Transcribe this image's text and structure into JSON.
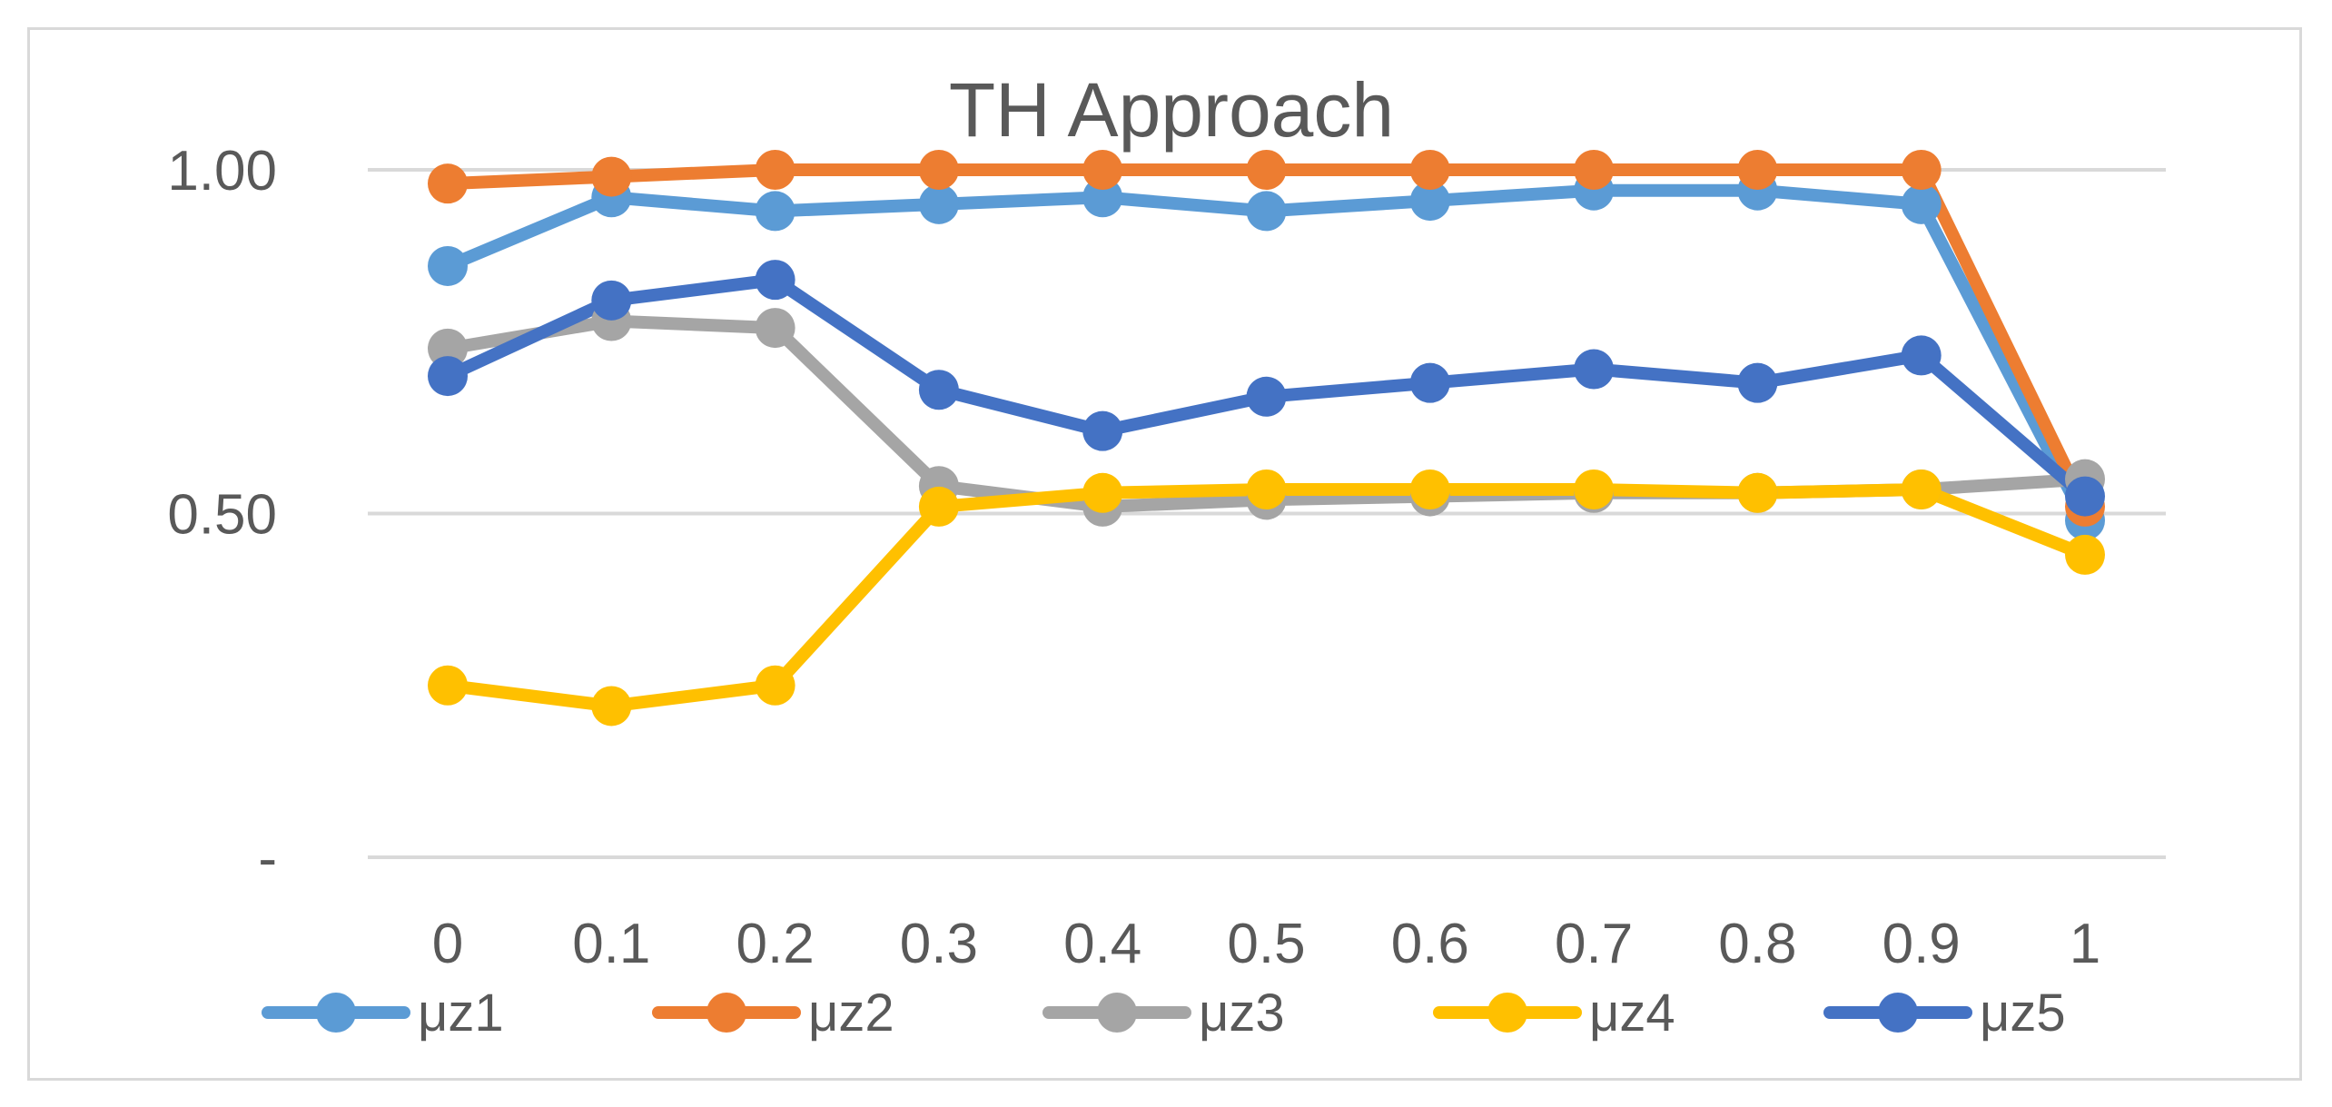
{
  "chart_data": {
    "type": "line",
    "title": "TH Approach",
    "xlabel": "",
    "ylabel": "",
    "x": [
      0,
      0.1,
      0.2,
      0.3,
      0.4,
      0.5,
      0.6,
      0.7,
      0.8,
      0.9,
      1
    ],
    "x_tick_labels": [
      "0",
      "0.1",
      "0.2",
      "0.3",
      "0.4",
      "0.5",
      "0.6",
      "0.7",
      "0.8",
      "0.9",
      "1"
    ],
    "ylim": [
      0,
      1
    ],
    "y_ticks": [
      0,
      0.5,
      1
    ],
    "y_tick_labels": [
      "-",
      "0.50",
      "1.00"
    ],
    "grid": true,
    "legend_position": "bottom",
    "series": [
      {
        "name": "μz1",
        "color": "#5b9bd5",
        "values": [
          0.86,
          0.96,
          0.94,
          0.95,
          0.96,
          0.94,
          0.955,
          0.97,
          0.97,
          0.95,
          0.49
        ]
      },
      {
        "name": "μz2",
        "color": "#ed7d31",
        "values": [
          0.98,
          0.99,
          1.0,
          1.0,
          1.0,
          1.0,
          1.0,
          1.0,
          1.0,
          1.0,
          0.51
        ]
      },
      {
        "name": "μz3",
        "color": "#a5a5a5",
        "values": [
          0.74,
          0.78,
          0.77,
          0.54,
          0.51,
          0.52,
          0.525,
          0.53,
          0.53,
          0.535,
          0.55
        ]
      },
      {
        "name": "μz4",
        "color": "#ffc000",
        "values": [
          0.25,
          0.22,
          0.25,
          0.51,
          0.53,
          0.535,
          0.535,
          0.535,
          0.53,
          0.535,
          0.44
        ]
      },
      {
        "name": "μz5",
        "color": "#4472c4",
        "values": [
          0.7,
          0.81,
          0.84,
          0.68,
          0.62,
          0.67,
          0.69,
          0.71,
          0.69,
          0.73,
          0.525
        ]
      }
    ]
  }
}
